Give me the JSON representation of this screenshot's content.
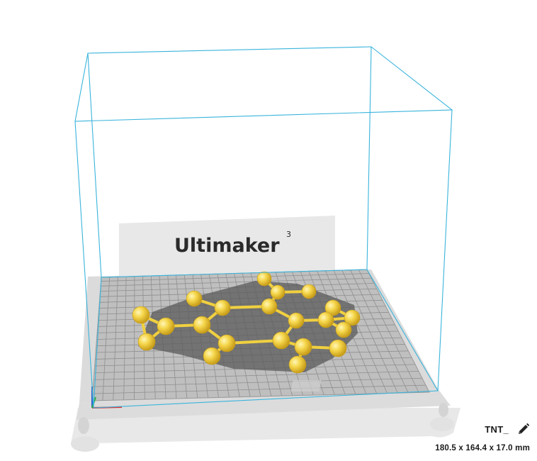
{
  "printer": {
    "brand_text": "Ultimaker",
    "model_superscript": "3"
  },
  "object": {
    "name": "TNT_",
    "dimensions": "180.5 x 164.4 x 17.0 mm"
  },
  "icons": {
    "edit": "pencil-icon"
  },
  "colors": {
    "build_volume_outline": "#3ab4dc",
    "model_yellow": "#f5d64b",
    "plate_gray": "#b3b3b3",
    "grid_line": "#8a8a8a"
  }
}
